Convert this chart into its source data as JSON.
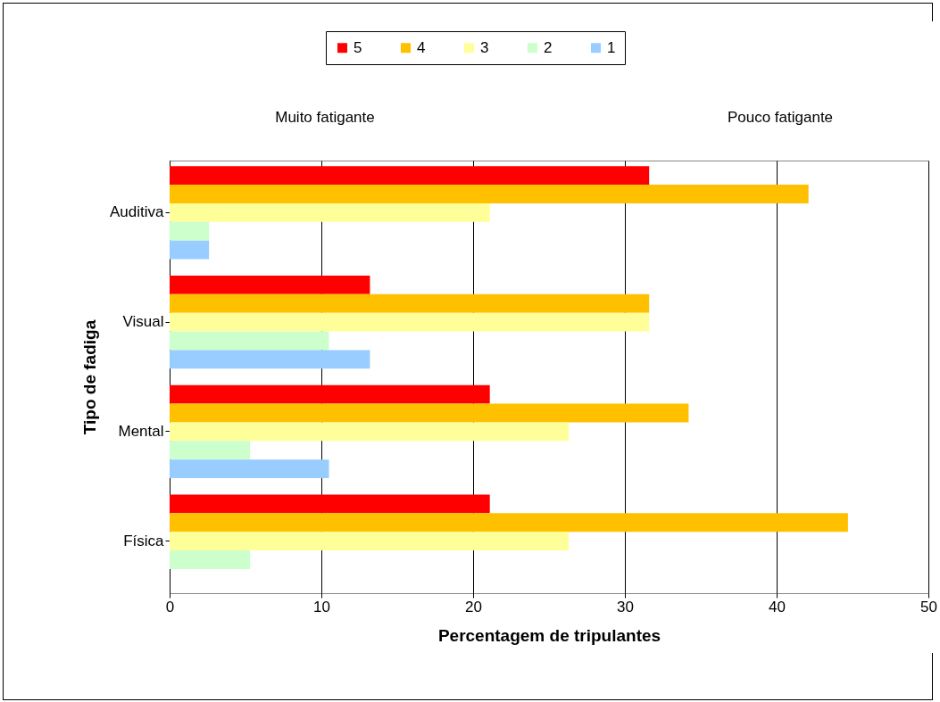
{
  "chart_data": {
    "type": "bar",
    "orientation": "horizontal",
    "xlabel": "Percentagem de tripulantes",
    "ylabel": "Tipo de fadiga",
    "categories": [
      "Auditiva",
      "Visual",
      "Mental",
      "Física"
    ],
    "series": [
      {
        "name": "5",
        "color": "#ff0000",
        "values": [
          31.6,
          13.2,
          21.1,
          21.1
        ]
      },
      {
        "name": "4",
        "color": "#ffc000",
        "values": [
          42.1,
          31.6,
          34.2,
          44.7
        ]
      },
      {
        "name": "3",
        "color": "#ffff99",
        "values": [
          21.1,
          31.6,
          26.3,
          26.3
        ]
      },
      {
        "name": "2",
        "color": "#ccffcc",
        "values": [
          2.6,
          10.5,
          5.3,
          5.3
        ]
      },
      {
        "name": "1",
        "color": "#99ccff",
        "values": [
          2.6,
          13.2,
          10.5,
          null
        ]
      }
    ],
    "xlim": [
      0,
      50
    ],
    "xticks": [
      0,
      10,
      20,
      30,
      40,
      50
    ],
    "grid": "x",
    "legend": "top",
    "annotations": [
      "Muito fatigante",
      "Pouco fatigante"
    ]
  }
}
